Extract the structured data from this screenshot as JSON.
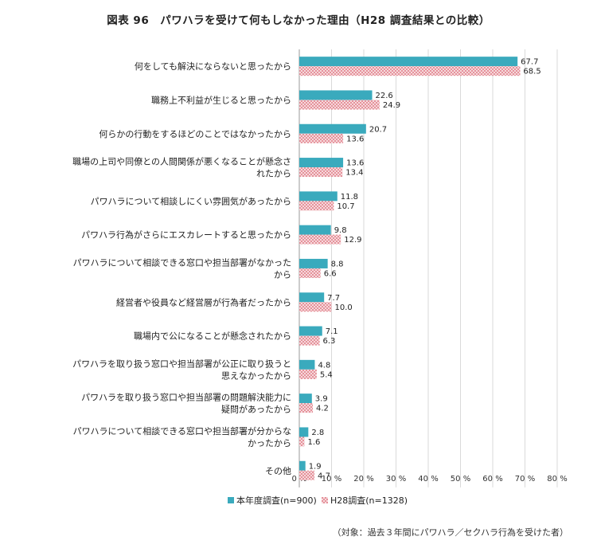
{
  "title": "図表 96　パワハラを受けて何もしなかった理由（H28 調査結果との比較）",
  "footnote": "（対象：過去３年間にパワハラ／セクハラ行為を受けた者）",
  "chart_data": {
    "type": "bar",
    "orientation": "horizontal",
    "categories": [
      [
        "何をしても解決にならないと思ったから"
      ],
      [
        "職務上不利益が生じると思ったから"
      ],
      [
        "何らかの行動をするほどのことではなかったから"
      ],
      [
        "職場の上司や同僚との人間関係が悪くなることが懸念さ",
        "れたから"
      ],
      [
        "パワハラについて相談しにくい雰囲気があったから"
      ],
      [
        "パワハラ行為がさらにエスカレートすると思ったから"
      ],
      [
        "パワハラについて相談できる窓口や担当部署がなかった",
        "から"
      ],
      [
        "経営者や役員など経営層が行為者だったから"
      ],
      [
        "職場内で公になることが懸念されたから"
      ],
      [
        "パワハラを取り扱う窓口や担当部署が公正に取り扱うと",
        "思えなかったから"
      ],
      [
        "パワハラを取り扱う窓口や担当部署の問題解決能力に",
        "疑問があったから"
      ],
      [
        "パワハラについて相談できる窓口や担当部署が分からな",
        "かったから"
      ],
      [
        "その他"
      ]
    ],
    "series": [
      {
        "name": "本年度調査(n=900)",
        "color": "#3aaabd",
        "values": [
          67.7,
          22.6,
          20.7,
          13.6,
          11.8,
          9.8,
          8.8,
          7.7,
          7.1,
          4.8,
          3.9,
          2.8,
          1.9
        ],
        "labels": [
          "67.7",
          "22.6",
          "20.7",
          "13.6",
          "11.8",
          "9.8",
          "8.8",
          "7.7",
          "7.1",
          "4.8",
          "3.9",
          "2.8",
          "1.9"
        ]
      },
      {
        "name": "H28調査(n=1328)",
        "color": "#e58b93",
        "values": [
          68.5,
          24.9,
          13.6,
          13.4,
          10.7,
          12.9,
          6.6,
          10.0,
          6.3,
          5.4,
          4.2,
          1.6,
          4.7
        ],
        "labels": [
          "68.5",
          "24.9",
          "13.6",
          "13.4",
          "10.7",
          "12.9",
          "6.6",
          "10.0",
          "6.3",
          "5.4",
          "4.2",
          "1.6",
          "4.7"
        ]
      }
    ],
    "xlim": [
      0,
      80
    ],
    "xticks": [
      "0 %",
      "10 %",
      "20 %",
      "30 %",
      "40 %",
      "50 %",
      "60 %",
      "70 %",
      "80 %"
    ],
    "grid": true,
    "legend": "bottom"
  }
}
